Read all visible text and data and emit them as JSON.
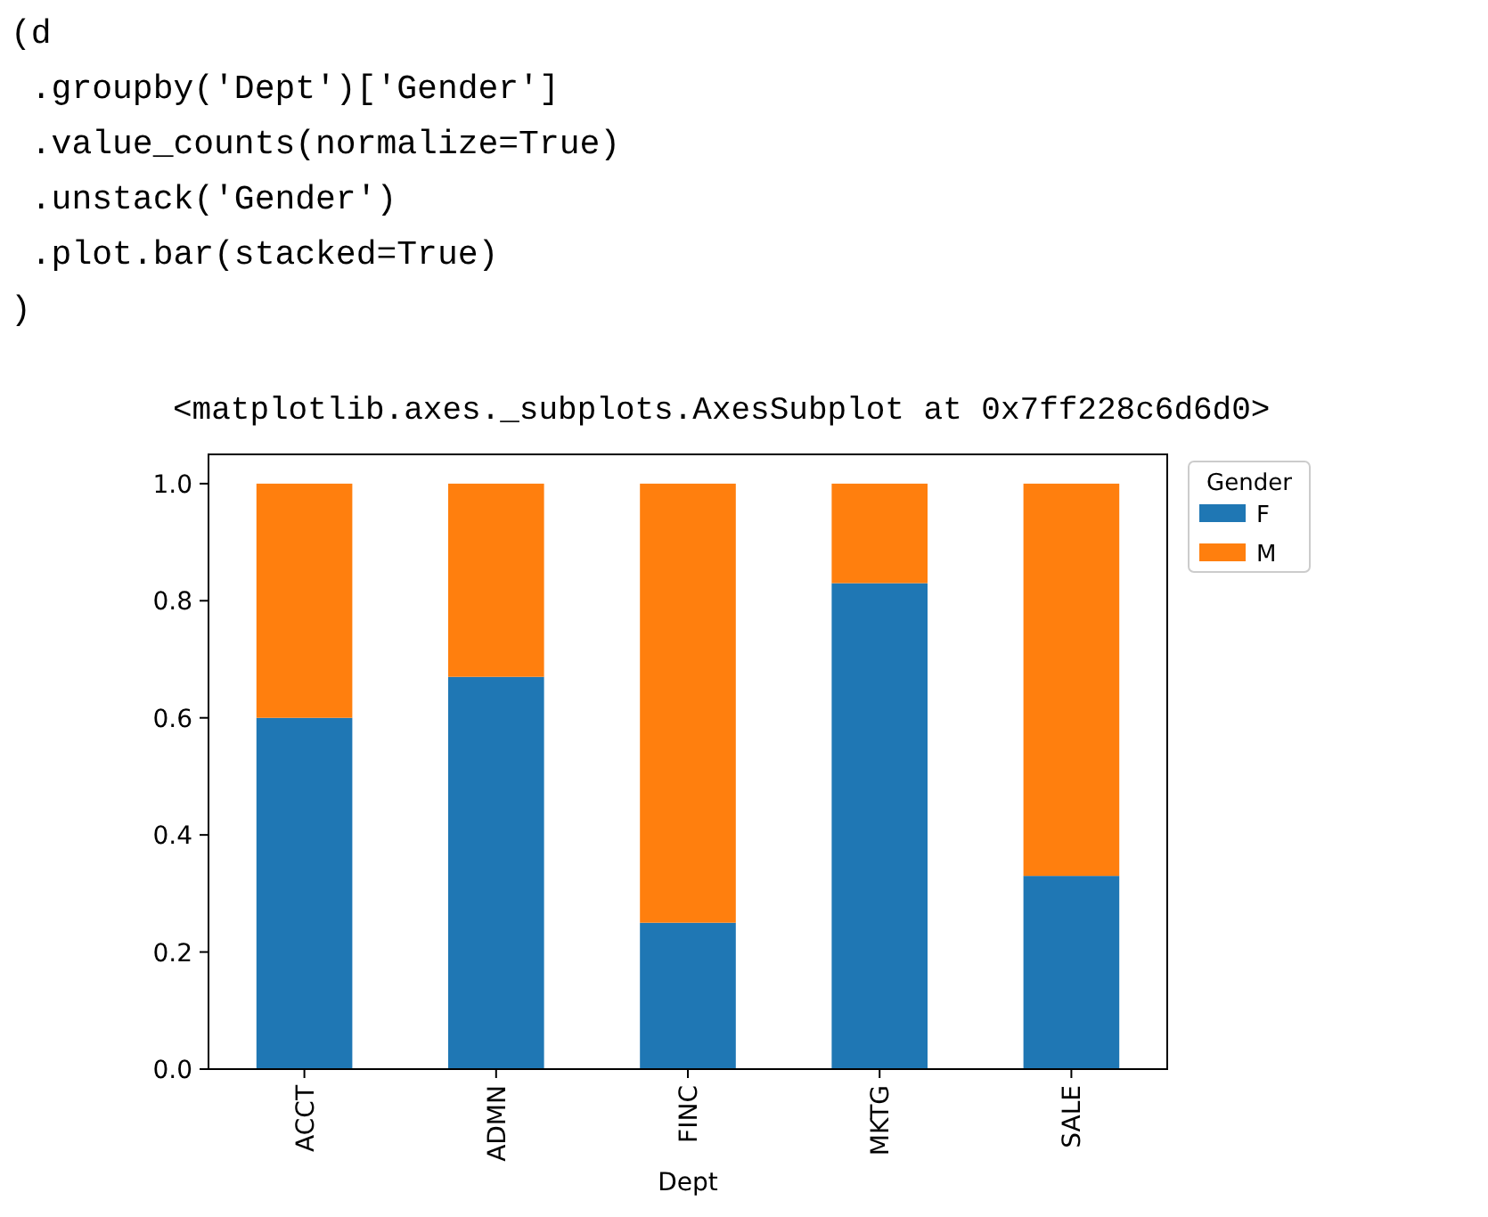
{
  "chart_data": {
    "type": "bar",
    "stacked": true,
    "categories": [
      "ACCT",
      "ADMN",
      "FINC",
      "MKTG",
      "SALE"
    ],
    "series": [
      {
        "name": "F",
        "color": "#1f77b4",
        "values": [
          0.6,
          0.67,
          0.25,
          0.83,
          0.33
        ]
      },
      {
        "name": "M",
        "color": "#ff7f0e",
        "values": [
          0.4,
          0.33,
          0.75,
          0.17,
          0.67
        ]
      }
    ],
    "xlabel": "Dept",
    "legend_title": "Gender",
    "legend": "right",
    "ylim": [
      0,
      1.05
    ],
    "yticks": [
      {
        "value": 0,
        "label": "0.0"
      },
      {
        "value": 0.2,
        "label": "0.2"
      },
      {
        "value": 0.4,
        "label": "0.4"
      },
      {
        "value": 0.6,
        "label": "0.6"
      },
      {
        "value": 0.8,
        "label": "0.8"
      },
      {
        "value": 1,
        "label": "1.0"
      }
    ],
    "annotations": [
      "(d",
      " .groupby('Dept')['Gender']",
      " .value_counts(normalize=True)",
      " .unstack('Gender')",
      " .plot.bar(stacked=True)",
      ")",
      "<matplotlib.axes._subplots.AxesSubplot at 0x7ff228c6d6d0>"
    ]
  }
}
